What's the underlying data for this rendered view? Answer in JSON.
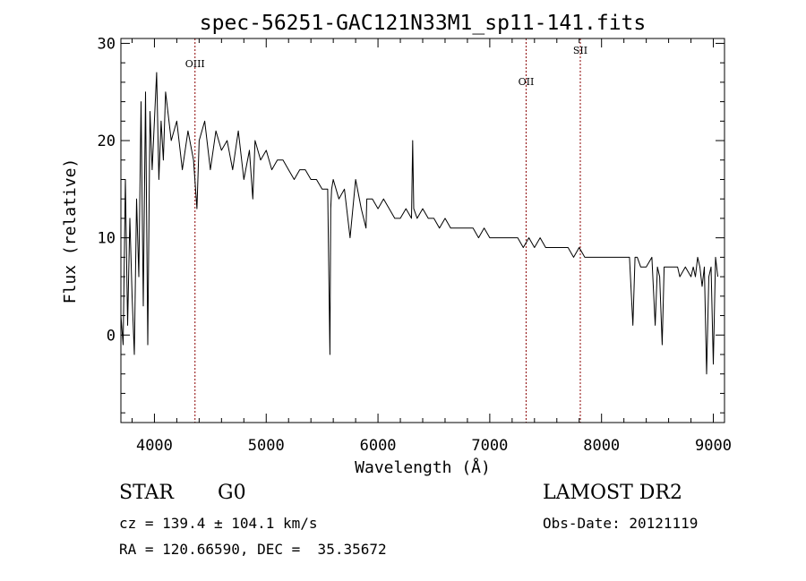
{
  "chart_data": {
    "type": "line",
    "title": "spec-56251-GAC121N33M1_sp11-141.fits",
    "xlabel": "Wavelength (Å)",
    "ylabel": "Flux (relative)",
    "xlim": [
      3700,
      9100
    ],
    "ylim": [
      -9,
      30.5
    ],
    "xticks": [
      4000,
      5000,
      6000,
      7000,
      8000,
      9000
    ],
    "yticks": [
      0,
      10,
      20,
      30
    ],
    "grid": false,
    "series": [
      {
        "x": [
          3700,
          3720,
          3740,
          3760,
          3780,
          3800,
          3820,
          3840,
          3860,
          3880,
          3900,
          3920,
          3940,
          3960,
          3980,
          4000,
          4020,
          4040,
          4060,
          4080,
          4100,
          4150,
          4200,
          4250,
          4300,
          4350,
          4380,
          4400,
          4450,
          4500,
          4550,
          4600,
          4650,
          4700,
          4750,
          4800,
          4850,
          4880,
          4900,
          4950,
          5000,
          5050,
          5100,
          5150,
          5200,
          5250,
          5300,
          5350,
          5400,
          5450,
          5500,
          5550,
          5570,
          5577,
          5585,
          5600,
          5650,
          5700,
          5750,
          5800,
          5850,
          5893,
          5900,
          5950,
          6000,
          6050,
          6100,
          6150,
          6200,
          6250,
          6300,
          6310,
          6320,
          6350,
          6400,
          6450,
          6500,
          6550,
          6600,
          6650,
          6700,
          6750,
          6800,
          6850,
          6900,
          6950,
          7000,
          7050,
          7100,
          7150,
          7200,
          7250,
          7300,
          7350,
          7400,
          7450,
          7500,
          7550,
          7600,
          7650,
          7700,
          7750,
          7800,
          7850,
          7900,
          7950,
          8000,
          8050,
          8100,
          8150,
          8200,
          8250,
          8280,
          8300,
          8320,
          8350,
          8400,
          8450,
          8480,
          8500,
          8520,
          8542,
          8560,
          8600,
          8640,
          8662,
          8680,
          8700,
          8750,
          8800,
          8820,
          8840,
          8860,
          8880,
          8900,
          8920,
          8940,
          8960,
          8980,
          9000,
          9020,
          9040
        ],
        "values": [
          2,
          -1,
          16,
          1,
          12,
          4,
          -2,
          14,
          6,
          24,
          3,
          25,
          -1,
          23,
          17,
          22,
          27,
          16,
          22,
          18,
          25,
          20,
          22,
          17,
          21,
          18,
          13,
          20,
          22,
          17,
          21,
          19,
          20,
          17,
          21,
          16,
          19,
          14,
          20,
          18,
          19,
          17,
          18,
          18,
          17,
          16,
          17,
          17,
          16,
          16,
          15,
          15,
          -2,
          13,
          15,
          16,
          14,
          15,
          10,
          16,
          13,
          11,
          14,
          14,
          13,
          14,
          13,
          12,
          12,
          13,
          12,
          20,
          13,
          12,
          13,
          12,
          12,
          11,
          12,
          11,
          11,
          11,
          11,
          11,
          10,
          11,
          10,
          10,
          10,
          10,
          10,
          10,
          9,
          10,
          9,
          10,
          9,
          9,
          9,
          9,
          9,
          8,
          9,
          8,
          8,
          8,
          8,
          8,
          8,
          8,
          8,
          8,
          1,
          8,
          8,
          7,
          7,
          8,
          1,
          7,
          6,
          -1,
          7,
          7,
          7,
          7,
          7,
          6,
          7,
          6,
          7,
          6,
          8,
          7,
          5,
          7,
          -4,
          6,
          7,
          -3,
          8,
          6
        ]
      }
    ],
    "lines": [
      {
        "label": "OIII",
        "x": 4363
      },
      {
        "label": "OII",
        "x": 7325
      },
      {
        "label": "SII",
        "x": 7810
      }
    ],
    "line_color": "#8b0000"
  },
  "info": {
    "object_class": "STAR",
    "subclass": "G0",
    "cz": "cz = 139.4 ± 104.1 km/s",
    "coords": "RA = 120.66590, DEC =  35.35672",
    "survey": "LAMOST DR2",
    "obs_date": "Obs-Date: 20121119"
  }
}
